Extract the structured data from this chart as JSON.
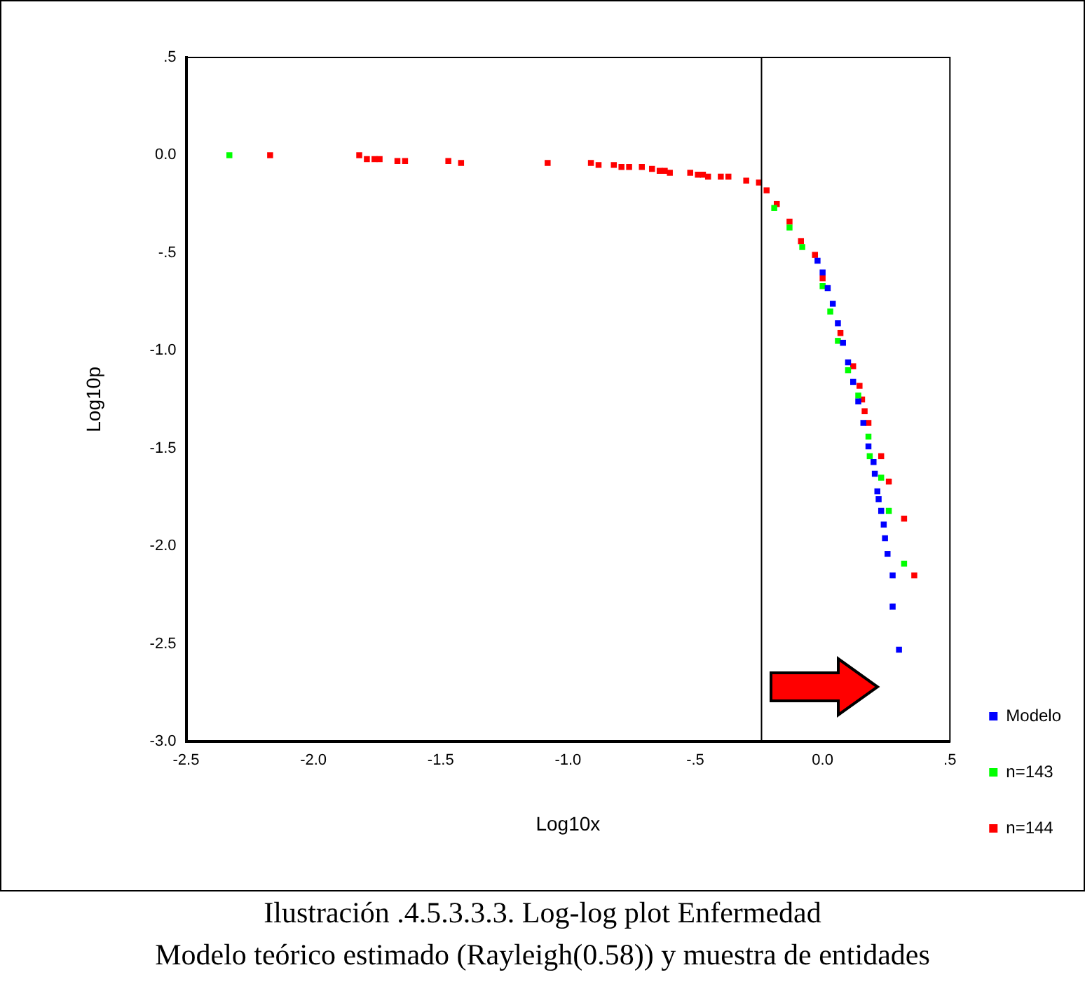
{
  "chart_data": {
    "type": "scatter",
    "xlabel": "Log10x",
    "ylabel": "Log10p",
    "xlim": [
      -2.5,
      0.5
    ],
    "ylim": [
      -3.0,
      0.5
    ],
    "xticks": [
      {
        "value": -2.5,
        "label": "-2.5"
      },
      {
        "value": -2.0,
        "label": "-2.0"
      },
      {
        "value": -1.5,
        "label": "-1.5"
      },
      {
        "value": -1.0,
        "label": "-1.0"
      },
      {
        "value": -0.5,
        "label": "-.5"
      },
      {
        "value": 0,
        "label": "0.0"
      },
      {
        "value": 0.5,
        "label": ".5"
      }
    ],
    "yticks": [
      {
        "value": -3.0,
        "label": "-3.0"
      },
      {
        "value": -2.5,
        "label": "-2.5"
      },
      {
        "value": -2.0,
        "label": "-2.0"
      },
      {
        "value": -1.5,
        "label": "-1.5"
      },
      {
        "value": -1.0,
        "label": "-1.0"
      },
      {
        "value": -0.5,
        "label": "-.5"
      },
      {
        "value": 0,
        "label": "0.0"
      },
      {
        "value": 0.5,
        "label": ".5"
      }
    ],
    "grid": false,
    "legend": "right",
    "marker": "square",
    "ref_lines": [
      {
        "axis": "x",
        "value": -0.24,
        "color": "#000000"
      }
    ],
    "series": [
      {
        "name": "Modelo",
        "color": "#0000ff",
        "x": [
          -0.02,
          0.0,
          0.02,
          0.04,
          0.06,
          0.08,
          0.1,
          0.12,
          0.14,
          0.16,
          0.18,
          0.2,
          0.205,
          0.215,
          0.22,
          0.23,
          0.24,
          0.245,
          0.255,
          0.275,
          0.275,
          0.3
        ],
        "values": [
          -0.54,
          -0.6,
          -0.68,
          -0.76,
          -0.86,
          -0.96,
          -1.06,
          -1.16,
          -1.26,
          -1.37,
          -1.49,
          -1.57,
          -1.63,
          -1.72,
          -1.76,
          -1.82,
          -1.89,
          -1.96,
          -2.04,
          -2.15,
          -2.31,
          -2.53
        ]
      },
      {
        "name": "n=143",
        "color": "#00ff00",
        "x": [
          -2.33,
          -0.19,
          -0.13,
          -0.08,
          -0.03,
          0.0,
          0.03,
          0.06,
          0.1,
          0.14,
          0.16,
          0.18,
          0.185,
          0.23,
          0.26,
          0.32
        ],
        "values": [
          0.0,
          -0.27,
          -0.37,
          -0.47,
          null,
          -0.67,
          -0.8,
          -0.95,
          -1.1,
          -1.23,
          null,
          -1.44,
          -1.54,
          -1.65,
          -1.82,
          -2.09
        ]
      },
      {
        "name": "n=144",
        "color": "#ff0000",
        "x": [
          -2.17,
          -1.82,
          -1.79,
          -1.76,
          -1.74,
          -1.67,
          -1.64,
          -1.47,
          -1.42,
          -1.08,
          -0.91,
          -0.88,
          -0.82,
          -0.79,
          -0.76,
          -0.71,
          -0.67,
          -0.64,
          -0.62,
          -0.6,
          -0.52,
          -0.49,
          -0.47,
          -0.45,
          -0.4,
          -0.37,
          -0.3,
          -0.25,
          -0.22,
          -0.18,
          -0.13,
          -0.085,
          -0.03,
          0.0,
          0.035,
          0.07,
          0.12,
          0.145,
          0.155,
          0.165,
          0.18,
          0.185,
          0.23,
          0.26,
          0.32,
          0.36
        ],
        "values": [
          0.0,
          0.0,
          -0.02,
          -0.02,
          -0.02,
          -0.03,
          -0.03,
          -0.03,
          -0.04,
          -0.04,
          -0.04,
          -0.05,
          -0.05,
          -0.06,
          -0.06,
          -0.06,
          -0.07,
          -0.08,
          -0.08,
          -0.09,
          -0.09,
          -0.1,
          -0.1,
          -0.11,
          -0.11,
          -0.11,
          -0.13,
          -0.14,
          -0.18,
          -0.25,
          -0.34,
          -0.44,
          -0.51,
          -0.63,
          null,
          -0.91,
          -1.08,
          -1.18,
          -1.25,
          -1.31,
          -1.37,
          null,
          -1.54,
          -1.67,
          -1.86,
          -2.15
        ]
      }
    ],
    "annotations": [
      "Ilustración .4.5.3.3.3.  Log-log plot Enfermedad",
      "Modelo teórico estimado (Rayleigh(0.58)) y muestra de entidades"
    ]
  }
}
